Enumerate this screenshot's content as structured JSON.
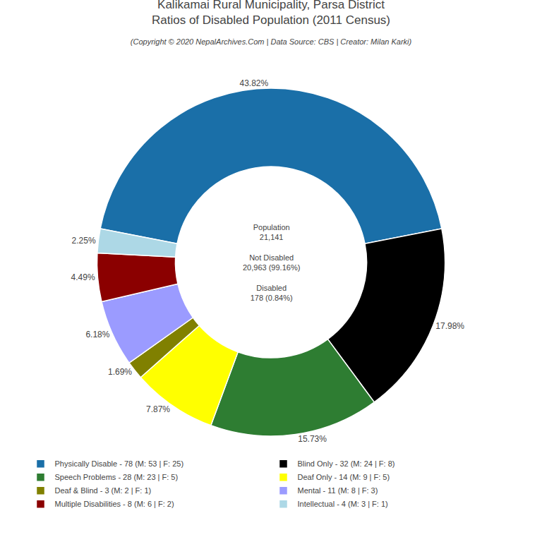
{
  "chart_data": {
    "type": "pie",
    "title": "Kalikamai Rural Municipality, Parsa District\nRatios of Disabled Population (2011 Census)",
    "subtitle": "(Copyright © 2020 NepalArchives.Com | Data Source: CBS | Creator: Milan Karki)",
    "categories": [
      "Physically Disable - 78 (M: 53 | F: 25)",
      "Blind Only - 32 (M: 24 | F: 8)",
      "Speech Problems - 28 (M: 23 | F: 5)",
      "Deaf Only - 14 (M: 9 | F: 5)",
      "Deaf & Blind - 3 (M: 2 | F: 1)",
      "Mental - 11 (M: 8 | F: 3)",
      "Multiple Disabilities - 8 (M: 6 | F: 2)",
      "Intellectual - 4 (M: 3 | F: 1)"
    ],
    "values": [
      43.82,
      17.98,
      15.73,
      7.87,
      1.69,
      6.18,
      4.49,
      2.25
    ],
    "value_labels": [
      "43.82%",
      "17.98%",
      "15.73%",
      "7.87%",
      "1.69%",
      "6.18%",
      "4.49%",
      "2.25%"
    ],
    "colors": [
      "#1a6fa8",
      "#000000",
      "#2e7d32",
      "#ffff00",
      "#808000",
      "#9b9bff",
      "#8b0000",
      "#add8e6"
    ],
    "annotations": [
      "Population\n21,141",
      "Not Disabled\n20,963 (99.16%)",
      "Disabled\n178 (0.84%)"
    ],
    "data_labels": true,
    "legend": "bottom"
  }
}
